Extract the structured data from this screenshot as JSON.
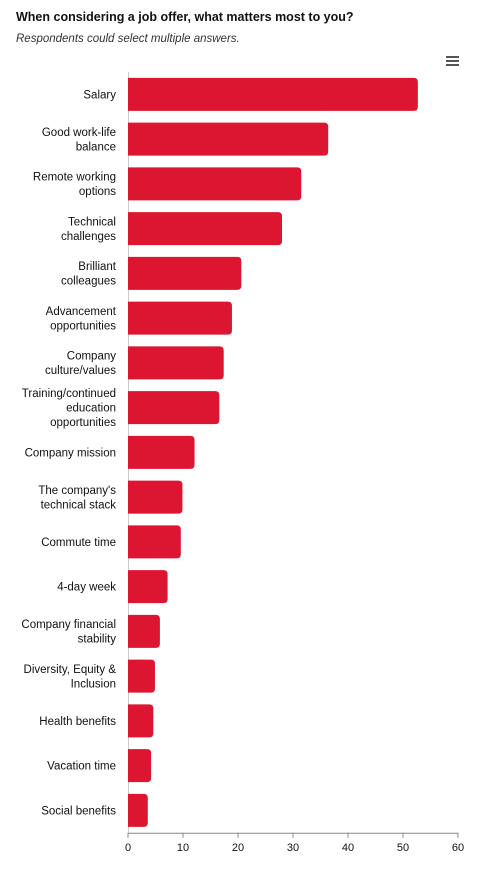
{
  "header": {
    "title": "When considering a job offer, what matters most to you?",
    "subtitle": "Respondents could select multiple answers."
  },
  "menu_icon": "hamburger-menu-icon",
  "colors": {
    "bar": "#dc1530",
    "axis": "#888888",
    "text": "#111111"
  },
  "chart_data": {
    "type": "bar",
    "orientation": "horizontal",
    "title": "When considering a job offer, what matters most to you?",
    "subtitle": "Respondents could select multiple answers.",
    "categories": [
      "Salary",
      "Good work-life balance",
      "Remote working options",
      "Technical challenges",
      "Brilliant colleagues",
      "Advancement opportunities",
      "Company culture/values",
      "Training/continued education opportunities",
      "Company mission",
      "The company's technical stack",
      "Commute time",
      "4-day week",
      "Company financial stability",
      "Diversity, Equity & Inclusion",
      "Health benefits",
      "Vacation time",
      "Social benefits"
    ],
    "category_lines": [
      [
        "Salary"
      ],
      [
        "Good work-life",
        "balance"
      ],
      [
        "Remote working",
        "options"
      ],
      [
        "Technical",
        "challenges"
      ],
      [
        "Brilliant",
        "colleagues"
      ],
      [
        "Advancement",
        "opportunities"
      ],
      [
        "Company",
        "culture/values"
      ],
      [
        "Training/continued",
        "education",
        "opportunities"
      ],
      [
        "Company mission"
      ],
      [
        "The company's",
        "technical stack"
      ],
      [
        "Commute time"
      ],
      [
        "4-day week"
      ],
      [
        "Company financial",
        "stability"
      ],
      [
        "Diversity, Equity &",
        "Inclusion"
      ],
      [
        "Health benefits"
      ],
      [
        "Vacation time"
      ],
      [
        "Social benefits"
      ]
    ],
    "values": [
      52.7,
      36.4,
      31.5,
      28.0,
      20.6,
      18.9,
      17.4,
      16.6,
      12.1,
      9.9,
      9.6,
      7.2,
      5.8,
      4.9,
      4.6,
      4.2,
      3.6
    ],
    "xlim": [
      0,
      60
    ],
    "xticks": [
      "0",
      "10",
      "20",
      "30",
      "40",
      "50",
      "60"
    ],
    "xlabel": "",
    "ylabel": "",
    "grid": false,
    "legend": "none"
  }
}
